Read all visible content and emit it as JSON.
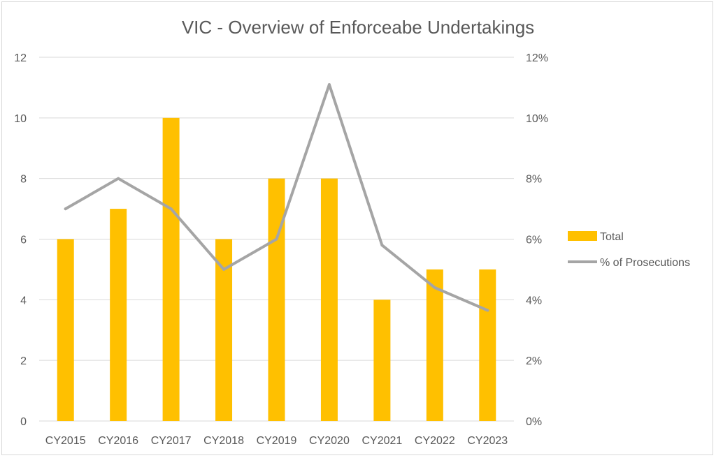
{
  "chart_data": {
    "type": "bar+line",
    "title": "VIC - Overview of Enforceabe Undertakings",
    "categories": [
      "CY2015",
      "CY2016",
      "CY2017",
      "CY2018",
      "CY2019",
      "CY2020",
      "CY2021",
      "CY2022",
      "CY2023"
    ],
    "series": [
      {
        "name": "Total",
        "type": "bar",
        "axis": "left",
        "values": [
          6,
          7,
          10,
          6,
          8,
          8,
          4,
          5,
          5
        ]
      },
      {
        "name": "% of Prosecutions",
        "type": "line",
        "axis": "right",
        "values": [
          0.07,
          0.08,
          0.07,
          0.05,
          0.06,
          0.111,
          0.058,
          0.044,
          0.0365
        ]
      }
    ],
    "y_left": {
      "min": 0,
      "max": 12,
      "ticks": [
        0,
        2,
        4,
        6,
        8,
        10,
        12
      ],
      "tick_labels": [
        "0",
        "2",
        "4",
        "6",
        "8",
        "10",
        "12"
      ]
    },
    "y_right": {
      "min": 0,
      "max": 0.12,
      "ticks": [
        0,
        0.02,
        0.04,
        0.06,
        0.08,
        0.1,
        0.12
      ],
      "tick_labels": [
        "0%",
        "2%",
        "4%",
        "6%",
        "8%",
        "10%",
        "12%"
      ]
    },
    "grid": true,
    "legend_position": "right",
    "colors": {
      "bar": "#FFC000",
      "line": "#A5A5A5",
      "grid": "#D9D9D9",
      "text": "#595959"
    }
  }
}
